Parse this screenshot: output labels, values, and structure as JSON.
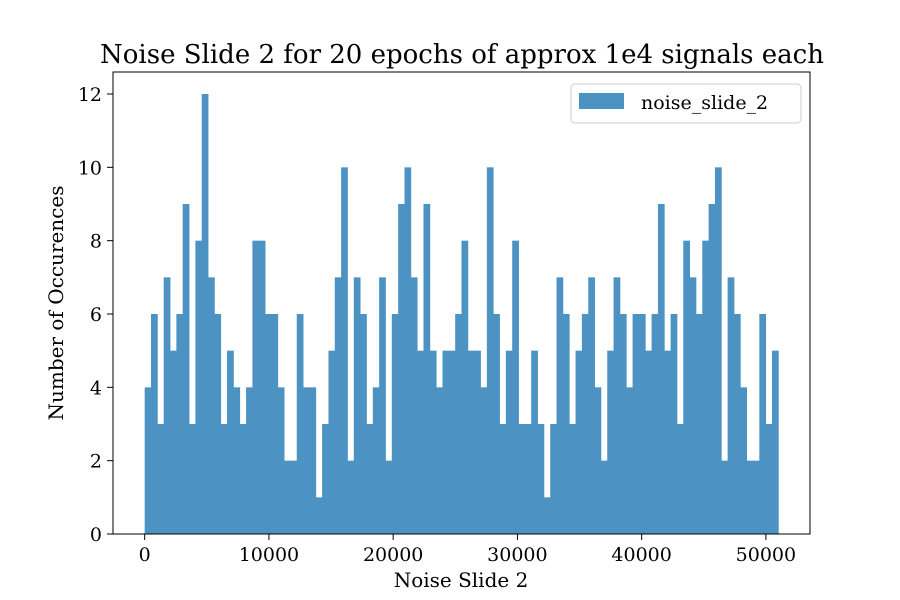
{
  "chart_data": {
    "type": "bar",
    "subtype": "histogram",
    "title": "Noise Slide 2 for 20 epochs of approx 1e4 signals each",
    "xlabel": "Noise Slide 2",
    "ylabel": "Number of Occurences",
    "xlim": [
      -2550,
      53550
    ],
    "ylim": [
      0,
      12.6
    ],
    "xticks": [
      0,
      10000,
      20000,
      30000,
      40000,
      50000
    ],
    "yticks": [
      0,
      2,
      4,
      6,
      8,
      10,
      12
    ],
    "bin_start": 0,
    "bin_width": 510,
    "bin_count": 100,
    "counts": [
      4,
      6,
      3,
      7,
      5,
      6,
      9,
      3,
      8,
      12,
      7,
      6,
      3,
      5,
      4,
      3,
      4,
      8,
      8,
      6,
      6,
      4,
      2,
      2,
      6,
      4,
      4,
      1,
      3,
      5,
      7,
      10,
      2,
      7,
      6,
      3,
      4,
      7,
      2,
      6,
      9,
      10,
      7,
      5,
      9,
      5,
      4,
      5,
      5,
      6,
      8,
      5,
      5,
      4,
      10,
      6,
      3,
      5,
      8,
      3,
      3,
      5,
      3,
      1,
      3,
      7,
      6,
      3,
      5,
      6,
      7,
      4,
      2,
      5,
      7,
      6,
      4,
      6,
      6,
      5,
      6,
      9,
      5,
      6,
      3,
      8,
      7,
      6,
      8,
      9,
      10,
      2,
      7,
      6,
      4,
      2,
      2,
      6,
      3,
      5
    ],
    "series": [
      {
        "name": "noise_slide_2",
        "color": "#4c93c3"
      }
    ],
    "legend_position": "upper right",
    "grid": false
  }
}
